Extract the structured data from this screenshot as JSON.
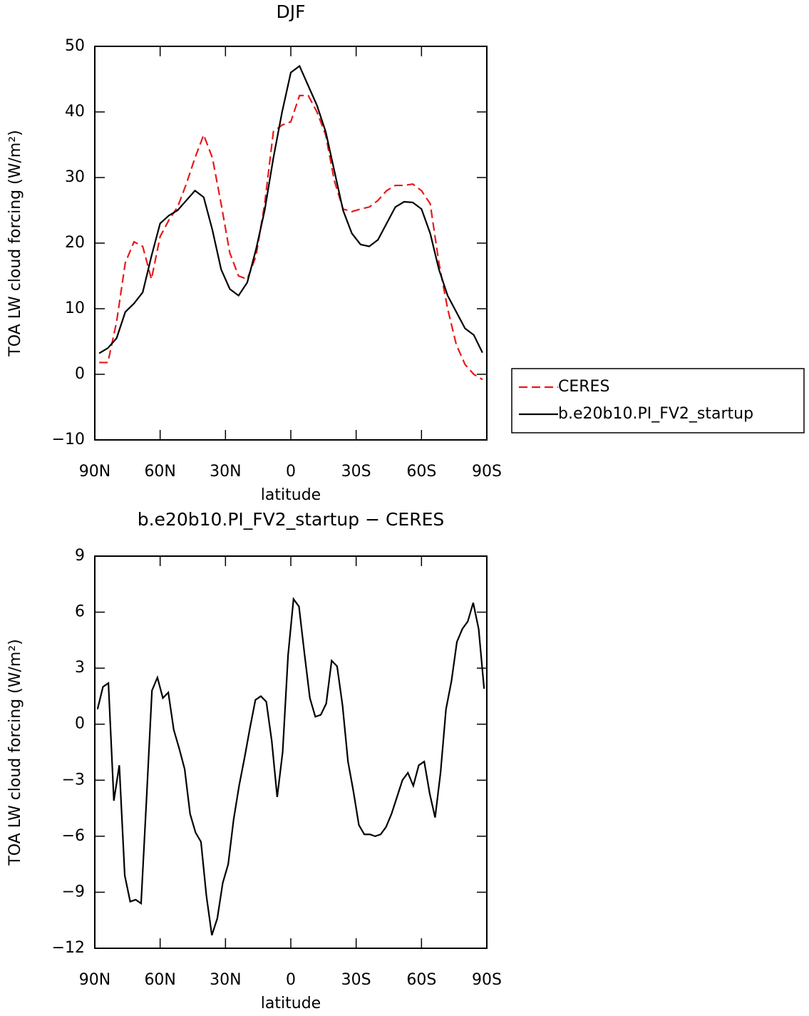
{
  "chart_data": [
    {
      "type": "line",
      "title": "DJF",
      "xlabel": "latitude",
      "ylabel": "TOA LW cloud forcing (W/m²)",
      "x": [
        88,
        84,
        80,
        76,
        72,
        68,
        64,
        60,
        56,
        52,
        48,
        44,
        40,
        36,
        32,
        28,
        24,
        20,
        16,
        12,
        8,
        4,
        0,
        -4,
        -8,
        -12,
        -16,
        -20,
        -24,
        -28,
        -32,
        -36,
        -40,
        -44,
        -48,
        -52,
        -56,
        -60,
        -64,
        -68,
        -72,
        -76,
        -80,
        -84,
        -88
      ],
      "series": [
        {
          "name": "CERES",
          "color": "#e8191a",
          "line_style": "dashed",
          "values": [
            1.8,
            1.8,
            8,
            17,
            20.2,
            19.5,
            14.5,
            21,
            23.5,
            25.5,
            29,
            33,
            36.5,
            33,
            26,
            18.5,
            15,
            14.5,
            18,
            26,
            37,
            38,
            38.5,
            42.5,
            42.5,
            40,
            36.5,
            29.5,
            25.2,
            24.8,
            25.2,
            25.5,
            26.5,
            28,
            28.8,
            28.8,
            29,
            28,
            26,
            17,
            10,
            4.5,
            1.5,
            0,
            -0.8
          ]
        },
        {
          "name": "b.e20b10.PI_FV2_startup",
          "color": "#000000",
          "line_style": "solid",
          "values": [
            3.2,
            4,
            5.5,
            9.5,
            10.8,
            12.5,
            18,
            23,
            24.2,
            25,
            26.5,
            28,
            27,
            22,
            16,
            13,
            12,
            14,
            19,
            25,
            33,
            40,
            46,
            47,
            44,
            41,
            37,
            31,
            25,
            21.5,
            19.8,
            19.5,
            20.5,
            23,
            25.5,
            26.3,
            26.2,
            25.2,
            21.5,
            16,
            12,
            9.5,
            7,
            6,
            3.3
          ]
        }
      ],
      "xlim": [
        90,
        -90
      ],
      "xticks": [
        {
          "value": 90,
          "label": "90N"
        },
        {
          "value": 60,
          "label": "60N"
        },
        {
          "value": 30,
          "label": "30N"
        },
        0,
        {
          "value": -30,
          "label": "30S"
        },
        {
          "value": -60,
          "label": "60S"
        },
        {
          "value": -90,
          "label": "90S"
        }
      ],
      "ylim": [
        -10,
        50
      ],
      "yticks": [
        {
          "value": -10,
          "label": "−10"
        },
        0,
        10,
        20,
        30,
        40,
        50
      ],
      "legend": "right"
    },
    {
      "type": "line",
      "title": "b.e20b10.PI_FV2_startup − CERES",
      "xlabel": "latitude",
      "ylabel": "TOA LW cloud forcing (W/m²)",
      "x": [
        88.75,
        86.25,
        83.75,
        81.25,
        78.75,
        76.25,
        73.75,
        71.25,
        68.75,
        66.25,
        63.75,
        61.25,
        58.75,
        56.25,
        53.75,
        51.25,
        48.75,
        46.25,
        43.75,
        41.25,
        38.75,
        36.25,
        33.75,
        31.25,
        28.75,
        26.25,
        23.75,
        21.25,
        18.75,
        16.25,
        13.75,
        11.25,
        8.75,
        6.25,
        3.75,
        1.25,
        -1.25,
        -3.75,
        -6.25,
        -8.75,
        -11.25,
        -13.75,
        -16.25,
        -18.75,
        -21.25,
        -23.75,
        -26.25,
        -28.75,
        -31.25,
        -33.75,
        -36.25,
        -38.75,
        -41.25,
        -43.75,
        -46.25,
        -48.75,
        -51.25,
        -53.75,
        -56.25,
        -58.75,
        -61.25,
        -63.75,
        -66.25,
        -68.75,
        -71.25,
        -73.75,
        -76.25,
        -78.75,
        -81.25,
        -83.75,
        -86.25,
        -88.75
      ],
      "values": [
        0.8,
        2.0,
        2.2,
        -4.1,
        -2.2,
        -8.1,
        -9.5,
        -9.4,
        -9.6,
        -4,
        1.8,
        2.5,
        1.4,
        1.7,
        -0.3,
        -1.3,
        -2.4,
        -4.8,
        -5.8,
        -6.3,
        -9.2,
        -11.3,
        -10.4,
        -8.5,
        -7.5,
        -5.1,
        -3.3,
        -1.8,
        -0.2,
        1.3,
        1.5,
        1.2,
        -0.9,
        -3.9,
        -1.5,
        3.7,
        6.7,
        6.3,
        3.8,
        1.4,
        0.4,
        0.5,
        1.1,
        3.4,
        3.1,
        1,
        -2,
        -3.6,
        -5.4,
        -5.9,
        -5.9,
        -6,
        -5.9,
        -5.5,
        -4.8,
        -3.9,
        -3.0,
        -2.6,
        -3.3,
        -2.2,
        -2.0,
        -3.7,
        -5.0,
        -2.6,
        0.8,
        2.3,
        4.4,
        5.1,
        5.5,
        6.5,
        5.1,
        1.9
      ],
      "color": "#000000",
      "xlim": [
        90,
        -90
      ],
      "xticks": [
        {
          "value": 90,
          "label": "90N"
        },
        {
          "value": 60,
          "label": "60N"
        },
        {
          "value": 30,
          "label": "30N"
        },
        0,
        {
          "value": -30,
          "label": "30S"
        },
        {
          "value": -60,
          "label": "60S"
        },
        {
          "value": -90,
          "label": "90S"
        }
      ],
      "ylim": [
        -12,
        9
      ],
      "yticks": [
        {
          "value": -12,
          "label": "−12"
        },
        {
          "value": -9,
          "label": "−9"
        },
        {
          "value": -6,
          "label": "−6"
        },
        {
          "value": -3,
          "label": "−3"
        },
        0,
        3,
        6,
        9
      ]
    }
  ]
}
